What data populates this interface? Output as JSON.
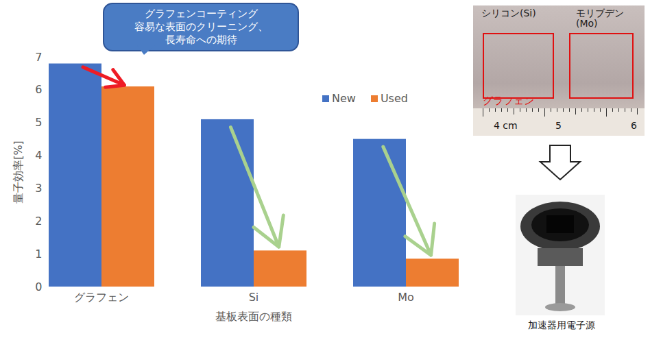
{
  "chart_data": {
    "type": "bar",
    "categories": [
      "グラフェン",
      "Si",
      "Mo"
    ],
    "series": [
      {
        "name": "New",
        "color": "#4472c4",
        "values": [
          6.8,
          5.1,
          4.5
        ]
      },
      {
        "name": "Used",
        "color": "#ed7d31",
        "values": [
          6.1,
          1.1,
          0.85
        ]
      }
    ],
    "x_label": "基板表面の種類",
    "y_label": "量子効率[%]",
    "ylim": [
      0,
      7
    ],
    "yticks": [
      0,
      1,
      2,
      3,
      4,
      5,
      6,
      7
    ],
    "grid": false,
    "legend": "top-right",
    "annotations": [
      "グラフェンコーティング\n容易な表面のクリーニング、\n長寿命への期待",
      "シリコン(Si)",
      "モリブデン\n(Mo)",
      "グラフェン",
      "4 cm",
      "5",
      "6",
      "加速器用電子源"
    ]
  }
}
